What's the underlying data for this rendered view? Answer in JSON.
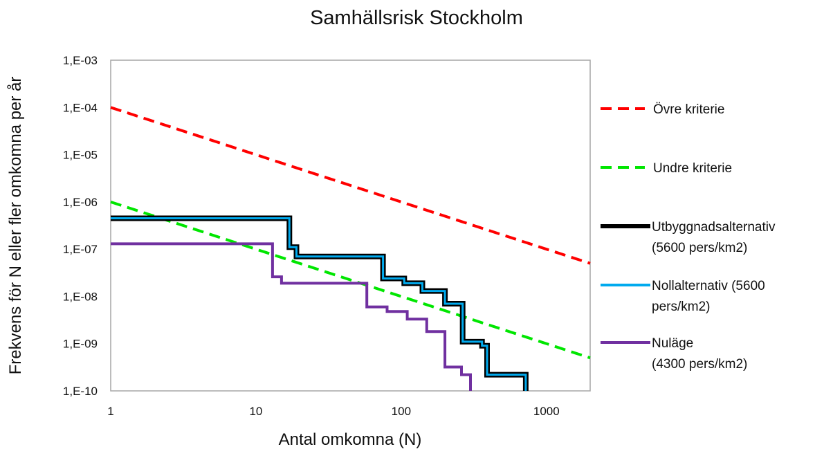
{
  "chart_data": {
    "type": "line",
    "title": "Samhällsrisk Stockholm",
    "xlabel": "Antal omkomna (N)",
    "ylabel": "Frekvens för N eller fler omkomna per år",
    "x_scale": "log",
    "y_scale": "log",
    "xlim": [
      1,
      2000
    ],
    "ylim": [
      1e-10,
      0.001
    ],
    "x_ticks": [
      {
        "value": 1,
        "label": "1"
      },
      {
        "value": 10,
        "label": "10"
      },
      {
        "value": 100,
        "label": "100"
      },
      {
        "value": 1000,
        "label": "1000"
      }
    ],
    "y_ticks": [
      {
        "value": 0.001,
        "label": "1,E-03"
      },
      {
        "value": 0.0001,
        "label": "1,E-04"
      },
      {
        "value": 1e-05,
        "label": "1,E-05"
      },
      {
        "value": 1e-06,
        "label": "1,E-06"
      },
      {
        "value": 1e-07,
        "label": "1,E-07"
      },
      {
        "value": 1e-08,
        "label": "1,E-08"
      },
      {
        "value": 1e-09,
        "label": "1,E-09"
      },
      {
        "value": 1e-10,
        "label": "1,E-10"
      }
    ],
    "grid": false,
    "legend_position": "right",
    "series": [
      {
        "name": "Övre kriterie",
        "style": "dashed",
        "color": "#ff0000",
        "x": [
          1,
          2000
        ],
        "y": [
          0.0001,
          5e-08
        ]
      },
      {
        "name": "Undre kriterie",
        "style": "dashed",
        "color": "#00e600",
        "x": [
          1,
          2000
        ],
        "y": [
          1e-06,
          5e-10
        ]
      },
      {
        "name": "Utbyggnadsalternativ (5600 pers/km2)",
        "style": "step",
        "color": "#000000",
        "x": [
          1,
          17,
          17,
          19,
          19,
          75,
          75,
          105,
          105,
          140,
          140,
          200,
          200,
          265,
          265,
          360,
          360,
          390,
          390,
          720,
          720
        ],
        "y": [
          4.5e-07,
          4.5e-07,
          1.1e-07,
          1.1e-07,
          7e-08,
          7e-08,
          2.4e-08,
          2.4e-08,
          1.9e-08,
          1.9e-08,
          1.3e-08,
          1.3e-08,
          7e-09,
          7e-09,
          1.1e-09,
          1.1e-09,
          9e-10,
          9e-10,
          2.2e-10,
          2.2e-10,
          1e-10
        ]
      },
      {
        "name": "Nollalternativ (5600 pers/km2)",
        "style": "step",
        "color": "#00aaee",
        "x": [
          1,
          17,
          17,
          19,
          19,
          75,
          75,
          105,
          105,
          140,
          140,
          200,
          200,
          265,
          265,
          360,
          360,
          390,
          390,
          720,
          720
        ],
        "y": [
          4.5e-07,
          4.5e-07,
          1.1e-07,
          1.1e-07,
          7e-08,
          7e-08,
          2.4e-08,
          2.4e-08,
          1.9e-08,
          1.9e-08,
          1.3e-08,
          1.3e-08,
          7e-09,
          7e-09,
          1.1e-09,
          1.1e-09,
          9e-10,
          9e-10,
          2.2e-10,
          2.2e-10,
          1e-10
        ]
      },
      {
        "name": "Nuläge (4300 pers/km2)",
        "style": "step",
        "color": "#7030a0",
        "x": [
          1,
          13,
          13,
          15,
          15,
          58,
          58,
          80,
          80,
          110,
          110,
          150,
          150,
          200,
          200,
          260,
          260,
          300,
          300
        ],
        "y": [
          1.3e-07,
          1.3e-07,
          2.6e-08,
          2.6e-08,
          1.9e-08,
          1.9e-08,
          6e-09,
          6e-09,
          4.8e-09,
          4.8e-09,
          3.3e-09,
          3.3e-09,
          1.8e-09,
          1.8e-09,
          3.2e-10,
          3.2e-10,
          2.2e-10,
          2.2e-10,
          1e-10
        ]
      }
    ],
    "legend": [
      {
        "lines": [
          "Övre kriterie"
        ],
        "color": "#ff0000",
        "style": "dashed"
      },
      {
        "lines": [
          "Undre kriterie"
        ],
        "color": "#00e600",
        "style": "dashed"
      },
      {
        "lines": [
          "Utbyggnadsalternativ",
          "(5600 pers/km2)"
        ],
        "color": "#000000",
        "style": "solid-outlined"
      },
      {
        "lines": [
          "Nollalternativ (5600",
          "pers/km2)"
        ],
        "color": "#00aaee",
        "style": "solid"
      },
      {
        "lines": [
          "Nuläge",
          "(4300 pers/km2)"
        ],
        "color": "#7030a0",
        "style": "solid"
      }
    ]
  }
}
